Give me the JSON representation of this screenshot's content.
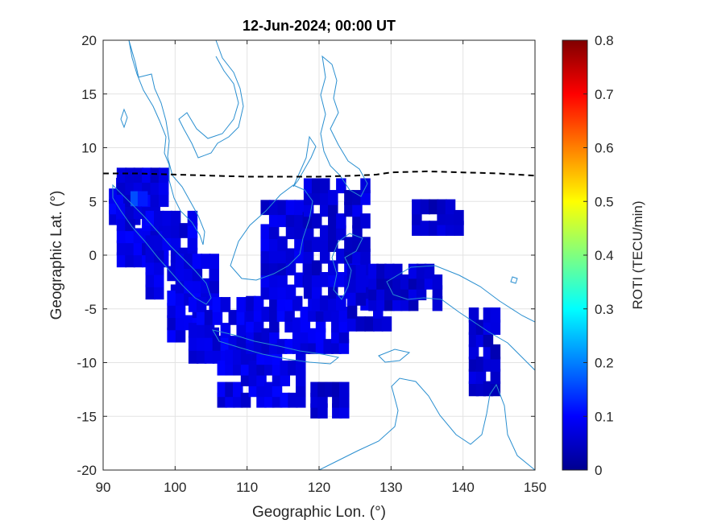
{
  "chart_data": {
    "type": "heatmap",
    "title": "12-Jun-2024; 00:00 UT",
    "xlabel": "Geographic Lon. (°)",
    "ylabel": "Geographic Lat. (°)",
    "colorbar_label": "ROTI (TECU/min)",
    "xlim": [
      90,
      150
    ],
    "ylim": [
      -20,
      20
    ],
    "xticks": [
      "90",
      "100",
      "110",
      "120",
      "130",
      "140",
      "150"
    ],
    "yticks": [
      "20",
      "15",
      "10",
      "5",
      "0",
      "-5",
      "-10",
      "-15",
      "-20"
    ],
    "colorbar_range": [
      0,
      0.8
    ],
    "colorbar_ticks": [
      "0.8",
      "0.7",
      "0.6",
      "0.5",
      "0.4",
      "0.3",
      "0.2",
      "0.1",
      "0"
    ],
    "colormap": "jet",
    "grid": true,
    "boundary_line": {
      "style": "dashed",
      "color": "#000000",
      "lon": [
        90,
        95,
        100,
        105,
        110,
        115,
        120,
        125,
        128,
        130,
        135,
        140,
        145,
        150
      ],
      "lat": [
        7.6,
        7.6,
        7.5,
        7.4,
        7.3,
        7.3,
        7.3,
        7.4,
        7.5,
        7.7,
        7.8,
        7.7,
        7.6,
        7.4
      ]
    },
    "roti_blocks": [
      {
        "lon": [
          91,
          96
        ],
        "lat": [
          3,
          7
        ],
        "roti": 0.08
      },
      {
        "lon": [
          92,
          99
        ],
        "lat": [
          -1,
          8
        ],
        "roti": 0.08
      },
      {
        "lon": [
          94,
          96
        ],
        "lat": [
          4.5,
          6
        ],
        "roti": 0.14
      },
      {
        "lon": [
          96,
          103
        ],
        "lat": [
          -4,
          4
        ],
        "roti": 0.08
      },
      {
        "lon": [
          99,
          106
        ],
        "lat": [
          -8,
          0
        ],
        "roti": 0.08
      },
      {
        "lon": [
          102,
          112
        ],
        "lat": [
          -10,
          -4
        ],
        "roti": 0.08
      },
      {
        "lon": [
          104,
          105.5
        ],
        "lat": [
          -1,
          0.5
        ],
        "roti": 0.15
      },
      {
        "lon": [
          106,
          118
        ],
        "lat": [
          -14,
          -9
        ],
        "roti": 0.08
      },
      {
        "lon": [
          110,
          124
        ],
        "lat": [
          -9,
          -4
        ],
        "roti": 0.08
      },
      {
        "lon": [
          112,
          119
        ],
        "lat": [
          -4,
          5
        ],
        "roti": 0.07
      },
      {
        "lon": [
          118,
          127
        ],
        "lat": [
          -5,
          7
        ],
        "roti": 0.07
      },
      {
        "lon": [
          119,
          124
        ],
        "lat": [
          -15,
          -12
        ],
        "roti": 0.06
      },
      {
        "lon": [
          124,
          130
        ],
        "lat": [
          -7,
          -1
        ],
        "roti": 0.07
      },
      {
        "lon": [
          127,
          137
        ],
        "lat": [
          -5,
          -1
        ],
        "roti": 0.06
      },
      {
        "lon": [
          133,
          140
        ],
        "lat": [
          2,
          5
        ],
        "roti": 0.06
      },
      {
        "lon": [
          141,
          145
        ],
        "lat": [
          -13,
          -5
        ],
        "roti": 0.06
      }
    ]
  }
}
